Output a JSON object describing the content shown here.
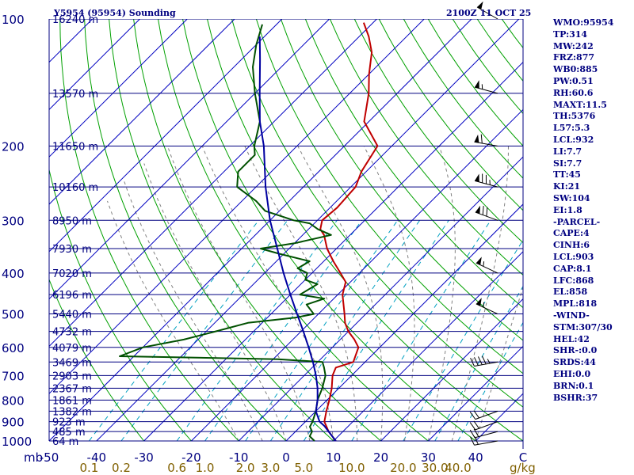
{
  "header": {
    "station": "Y5954 (95954) Sounding",
    "time": "2100Z 11 OCT 25"
  },
  "chart_data": {
    "type": "skew-t",
    "p_range": [
      1000,
      100
    ],
    "t_range_at_base": [
      -50,
      50
    ],
    "pressure_ticks": [
      100,
      200,
      300,
      400,
      500,
      600,
      700,
      800,
      900,
      1000
    ],
    "pressure_unit": "mb",
    "temp_ticks": [
      -50,
      -40,
      -30,
      -20,
      -10,
      0,
      10,
      20,
      30,
      40,
      50
    ],
    "temp_tick_labels": [
      "-50",
      "-40",
      "-30",
      "-20",
      "-10",
      "0",
      "10",
      "20",
      "30",
      "40",
      "C"
    ],
    "mixing_ratio_labels": [
      "0.1",
      "0.2",
      "0.6",
      "1.0",
      "2.0",
      "3.0",
      "5.0",
      "10.0",
      "20.0",
      "30.0",
      "40.0"
    ],
    "mixing_ratio_values": [
      0.1,
      0.2,
      0.6,
      1.0,
      2.0,
      3.0,
      5.0,
      10.0,
      20.0,
      30.0,
      40.0
    ],
    "mixing_ratio_unit": "g/kg",
    "height_labels": [
      {
        "p": 100,
        "text": "16240 m"
      },
      {
        "p": 150,
        "text": "13570 m"
      },
      {
        "p": 200,
        "text": "11650 m"
      },
      {
        "p": 250,
        "text": "10160 m"
      },
      {
        "p": 300,
        "text": "8950 m"
      },
      {
        "p": 350,
        "text": "7930 m"
      },
      {
        "p": 400,
        "text": "7020 m"
      },
      {
        "p": 450,
        "text": "6196 m"
      },
      {
        "p": 500,
        "text": "5440 m"
      },
      {
        "p": 550,
        "text": "4732 m"
      },
      {
        "p": 600,
        "text": "4079 m"
      },
      {
        "p": 650,
        "text": "3469 m"
      },
      {
        "p": 700,
        "text": "2903 m"
      },
      {
        "p": 750,
        "text": "2367 m"
      },
      {
        "p": 800,
        "text": "1861 m"
      },
      {
        "p": 850,
        "text": "1382 m"
      },
      {
        "p": 900,
        "text": "923 m"
      },
      {
        "p": 950,
        "text": "485 m"
      },
      {
        "p": 1000,
        "text": "64 m"
      }
    ],
    "series": [
      {
        "name": "Temperature",
        "color": "#c00000",
        "points": [
          [
            1000,
            10.5
          ],
          [
            950,
            7
          ],
          [
            900,
            4
          ],
          [
            850,
            2.2
          ],
          [
            800,
            0.5
          ],
          [
            750,
            -1.5
          ],
          [
            700,
            -4
          ],
          [
            670,
            -5
          ],
          [
            650,
            -2.5
          ],
          [
            600,
            -4.5
          ],
          [
            575,
            -7
          ],
          [
            550,
            -10
          ],
          [
            525,
            -12.5
          ],
          [
            500,
            -14.5
          ],
          [
            450,
            -19
          ],
          [
            420,
            -21
          ],
          [
            400,
            -24
          ],
          [
            375,
            -28
          ],
          [
            350,
            -32
          ],
          [
            325,
            -35.5
          ],
          [
            315,
            -37.5
          ],
          [
            300,
            -39
          ],
          [
            280,
            -38.5
          ],
          [
            250,
            -39
          ],
          [
            230,
            -41
          ],
          [
            200,
            -43
          ],
          [
            175,
            -51
          ],
          [
            150,
            -56
          ],
          [
            135,
            -60
          ],
          [
            120,
            -64
          ],
          [
            110,
            -68
          ],
          [
            102,
            -72
          ]
        ]
      },
      {
        "name": "Dewpoint",
        "color": "#005000",
        "points": [
          [
            1000,
            6
          ],
          [
            975,
            4
          ],
          [
            950,
            3.5
          ],
          [
            925,
            2
          ],
          [
            900,
            1.5
          ],
          [
            850,
            0
          ],
          [
            800,
            -2
          ],
          [
            750,
            -3.5
          ],
          [
            700,
            -5.5
          ],
          [
            670,
            -7.5
          ],
          [
            650,
            -9
          ],
          [
            640,
            -19
          ],
          [
            630,
            -53
          ],
          [
            600,
            -50
          ],
          [
            575,
            -43
          ],
          [
            550,
            -38
          ],
          [
            525,
            -33
          ],
          [
            510,
            -24
          ],
          [
            500,
            -21
          ],
          [
            475,
            -24.5
          ],
          [
            460,
            -22
          ],
          [
            450,
            -28
          ],
          [
            425,
            -26.5
          ],
          [
            415,
            -30
          ],
          [
            400,
            -31
          ],
          [
            390,
            -34
          ],
          [
            375,
            -33
          ],
          [
            360,
            -41
          ],
          [
            350,
            -46
          ],
          [
            340,
            -40
          ],
          [
            325,
            -34
          ],
          [
            315,
            -38
          ],
          [
            305,
            -41
          ],
          [
            300,
            -45
          ],
          [
            285,
            -53
          ],
          [
            270,
            -57
          ],
          [
            250,
            -64
          ],
          [
            230,
            -67
          ],
          [
            210,
            -67
          ],
          [
            200,
            -69
          ],
          [
            175,
            -73
          ],
          [
            150,
            -80
          ],
          [
            130,
            -86
          ],
          [
            115,
            -90
          ],
          [
            103,
            -93
          ]
        ]
      },
      {
        "name": "Parcel",
        "color": "#0000a0",
        "points": [
          [
            1000,
            10.5
          ],
          [
            950,
            7
          ],
          [
            920,
            4.8
          ],
          [
            900,
            3
          ],
          [
            850,
            0
          ],
          [
            800,
            -2
          ],
          [
            750,
            -4.5
          ],
          [
            700,
            -7.5
          ],
          [
            650,
            -11
          ],
          [
            600,
            -15
          ],
          [
            550,
            -19.5
          ],
          [
            500,
            -24.5
          ],
          [
            450,
            -30
          ],
          [
            400,
            -36
          ],
          [
            350,
            -42.5
          ],
          [
            300,
            -50
          ],
          [
            250,
            -58
          ],
          [
            200,
            -67
          ],
          [
            175,
            -73
          ],
          [
            150,
            -79
          ],
          [
            125,
            -86
          ],
          [
            110,
            -91
          ]
        ]
      }
    ],
    "wind_barbs": [
      {
        "p": 100,
        "direction": 300,
        "speed_kt": 50
      },
      {
        "p": 150,
        "direction": 285,
        "speed_kt": 55
      },
      {
        "p": 200,
        "direction": 280,
        "speed_kt": 60
      },
      {
        "p": 250,
        "direction": 285,
        "speed_kt": 75
      },
      {
        "p": 300,
        "direction": 290,
        "speed_kt": 70
      },
      {
        "p": 400,
        "direction": 295,
        "speed_kt": 55
      },
      {
        "p": 500,
        "direction": 295,
        "speed_kt": 55
      },
      {
        "p": 650,
        "direction": 260,
        "speed_kt": 45
      },
      {
        "p": 850,
        "direction": 250,
        "speed_kt": 20
      },
      {
        "p": 900,
        "direction": 250,
        "speed_kt": 20
      },
      {
        "p": 950,
        "direction": 255,
        "speed_kt": 20
      },
      {
        "p": 1000,
        "direction": 260,
        "speed_kt": 20
      }
    ]
  },
  "indices": [
    "WMO:95954",
    "TP:314",
    "MW:242",
    "FRZ:877",
    "WB0:885",
    "PW:0.51",
    "RH:60.6",
    "MAXT:11.5",
    "TH:5376",
    "L57:5.3",
    "LCL:932",
    "LI:7.7",
    "SI:7.7",
    "TT:45",
    "KI:21",
    "SW:104",
    "EI:1.8",
    "-PARCEL-",
    "CAPE:4",
    "CINH:6",
    "LCL:903",
    "CAP:8.1",
    "LFC:868",
    "EL:858",
    "MPL:818",
    "-WIND-",
    "STM:307/30",
    "HEL:42",
    "SHR-:0.0",
    "SRDS:44",
    "EHI:0.0",
    "BRN:0.1",
    "BSHR:37"
  ],
  "colors": {
    "isobar": "#000080",
    "isotherm": "#0000c0",
    "dry_adiabat": "#00a000",
    "moist_adiabat": "#808080",
    "mixing_ratio": "#00a0c0",
    "axis_text": "#000080",
    "mixing_ratio_text": "#806000",
    "barb": "#000000"
  }
}
